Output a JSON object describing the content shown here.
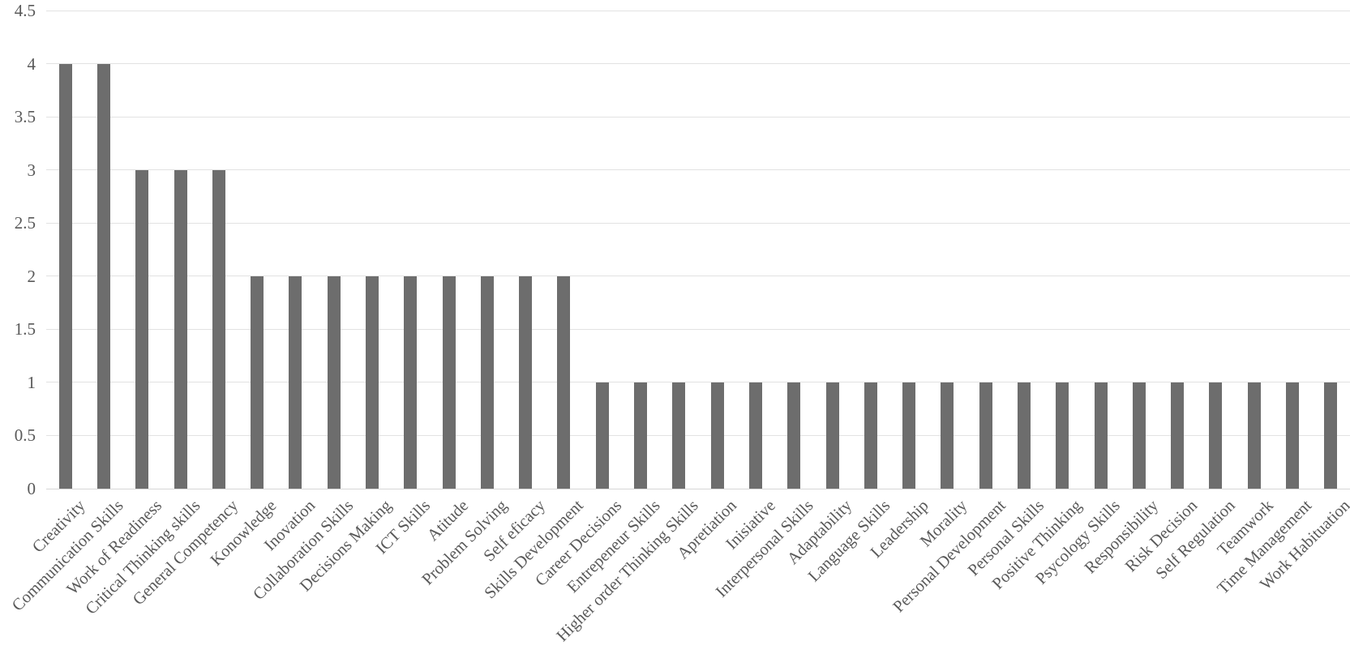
{
  "chart_data": {
    "type": "bar",
    "title": "",
    "xlabel": "",
    "ylabel": "",
    "categories": [
      "Creativity",
      "Communication Skills",
      "Work of Readiness",
      "Critical Thinking skills",
      "General Competency",
      "Konowledge",
      "Inovation",
      "Collaboration Skills",
      "Decisions Making",
      "ICT Skills",
      "Atitude",
      "Problem Solving",
      "Self eficacy",
      "Skills Development",
      "Career Decisions",
      "Entrepeneur Skills",
      "Higher order Thinking Skills",
      "Apretiation",
      "Inisiative",
      "Interpersonal Skills",
      "Adaptability",
      "Language Skills",
      "Leadership",
      "Morality",
      "Personal Development",
      "Personal Skills",
      "Positive Thinking",
      "Psycology Skills",
      "Responsibility",
      "Risk Decision",
      "Self Regulation",
      "Teamwork",
      "Time Management",
      "Work Habituation"
    ],
    "values": [
      4,
      4,
      3,
      3,
      3,
      2,
      2,
      2,
      2,
      2,
      2,
      2,
      2,
      2,
      1,
      1,
      1,
      1,
      1,
      1,
      1,
      1,
      1,
      1,
      1,
      1,
      1,
      1,
      1,
      1,
      1,
      1,
      1,
      1
    ],
    "ylim": [
      0,
      4.5
    ],
    "ytick_labels": [
      "0",
      "0.5",
      "1",
      "1.5",
      "2",
      "2.5",
      "3",
      "3.5",
      "4",
      "4.5"
    ],
    "grid": true,
    "legend": false,
    "label_rotation_deg": 45,
    "colors": {
      "bar": "#6d6d6d",
      "gridline": "#e2e2e2",
      "axis_line": "#d6d6d6",
      "text": "#595959"
    }
  }
}
